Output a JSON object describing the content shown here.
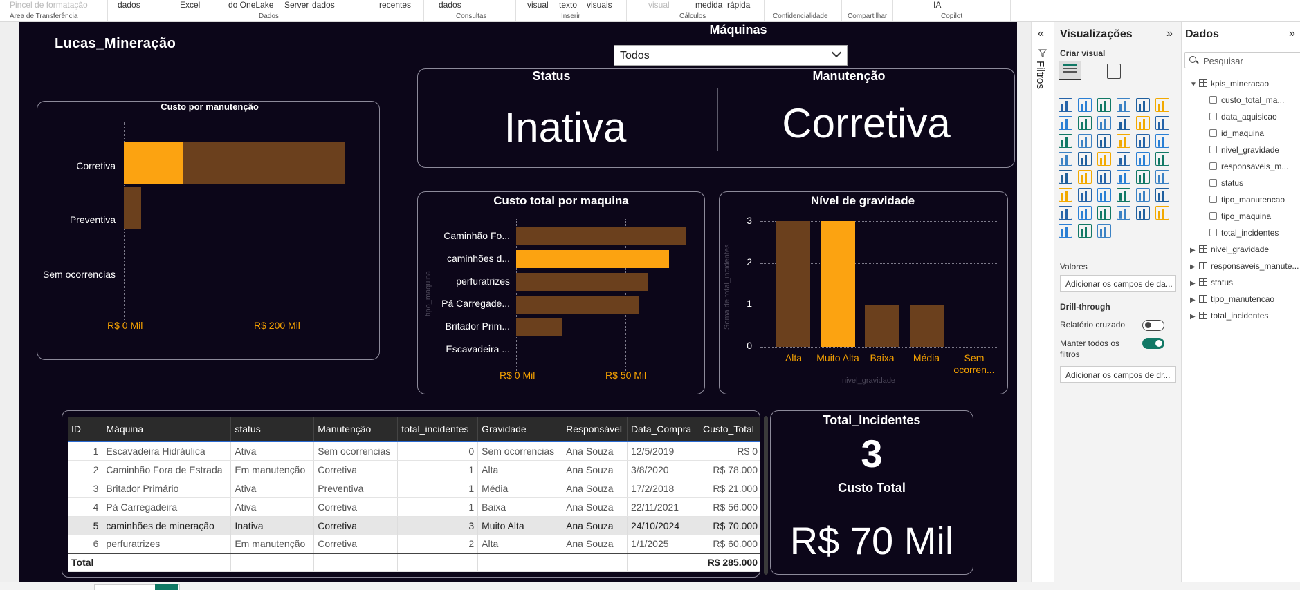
{
  "ribbon": {
    "items": [
      "Pincel de formatação",
      "dados",
      "Excel",
      "do OneLake",
      "Server",
      "dados",
      "recentes",
      "dados",
      "visual",
      "texto",
      "visuais",
      "visual",
      "medida",
      "rápida",
      "IA"
    ],
    "groups": [
      "Área de Transferência",
      "Dados",
      "Consultas",
      "Inserir",
      "Cálculos",
      "Confidencialidade",
      "Compartilhar",
      "Copilot"
    ]
  },
  "report": {
    "logo": "Lucas_Mineração",
    "machines_filter": {
      "label": "Máquinas",
      "value": "Todos"
    },
    "status_card": {
      "title": "Status",
      "value": "Inativa"
    },
    "maintenance_card": {
      "title": "Manutenção",
      "value": "Corretiva"
    },
    "custo_manutencao": {
      "title": "Custo por manutenção",
      "categories": [
        "Corretiva",
        "Preventiva",
        "Sem ocorrencias"
      ],
      "axis_ticks": [
        "R$ 0 Mil",
        "R$ 200 Mil"
      ]
    },
    "custo_maquina": {
      "title": "Custo total por maquina",
      "categories": [
        "Caminhão Fo...",
        "caminhões d...",
        "perfuratrizes",
        "Pá Carregade...",
        "Britador Prim...",
        "Escavadeira ..."
      ],
      "axis_ticks": [
        "R$ 0 Mil",
        "R$ 50 Mil"
      ],
      "y_axis_title": "tipo_maquina"
    },
    "gravidade": {
      "title": "Nível de gravidade",
      "categories": [
        "Alta",
        "Muito Alta",
        "Baixa",
        "Média",
        "Sem ocorren..."
      ],
      "y_ticks": [
        "3",
        "2",
        "1",
        "0"
      ],
      "y_axis_title": "Soma de total_incidentes",
      "x_axis_title": "nivel_gravidade"
    },
    "table": {
      "headers": [
        "ID",
        "Máquina",
        "status",
        "Manutenção",
        "total_incidentes",
        "Gravidade",
        "Responsável",
        "Data_Compra",
        "Custo_Total"
      ],
      "rows": [
        [
          "1",
          "Escavadeira Hidráulica",
          "Ativa",
          "Sem ocorrencias",
          "0",
          "Sem ocorrencias",
          "Ana Souza",
          "12/5/2019",
          "R$ 0"
        ],
        [
          "2",
          "Caminhão Fora de Estrada",
          "Em manutenção",
          "Corretiva",
          "1",
          "Alta",
          "Ana Souza",
          "3/8/2020",
          "R$ 78.000"
        ],
        [
          "3",
          "Britador Primário",
          "Ativa",
          "Preventiva",
          "1",
          "Média",
          "Ana Souza",
          "17/2/2018",
          "R$ 21.000"
        ],
        [
          "4",
          "Pá Carregadeira",
          "Ativa",
          "Corretiva",
          "1",
          "Baixa",
          "Ana Souza",
          "22/11/2021",
          "R$ 56.000"
        ],
        [
          "5",
          "caminhões de mineração",
          "Inativa",
          "Corretiva",
          "3",
          "Muito Alta",
          "Ana Souza",
          "24/10/2024",
          "R$ 70.000"
        ],
        [
          "6",
          "perfuratrizes",
          "Em manutenção",
          "Corretiva",
          "2",
          "Alta",
          "Ana Souza",
          "1/1/2025",
          "R$ 60.000"
        ]
      ],
      "total_label": "Total",
      "total_value": "R$ 285.000"
    },
    "kpi_card": {
      "incidents_title": "Total_Incidentes",
      "incidents_value": "3",
      "cost_title": "Custo Total",
      "cost_value": "R$ 70 Mil"
    }
  },
  "chart_data": [
    {
      "type": "bar",
      "title": "Custo por manutenção",
      "categories": [
        "Corretiva",
        "Preventiva",
        "Sem ocorrencias"
      ],
      "series": [
        {
          "values": [
            264000,
            21000,
            0
          ]
        },
        {
          "values": [
            70000,
            0,
            0
          ]
        }
      ],
      "xlim": [
        0,
        290000
      ]
    },
    {
      "type": "bar",
      "title": "Custo total por maquina",
      "categories": [
        "Caminhão Fo...",
        "caminhões d...",
        "perfuratrizes",
        "Pá Carregade...",
        "Britador Prim...",
        "Escavadeira ..."
      ],
      "values": [
        78000,
        70000,
        60000,
        56000,
        21000,
        0
      ],
      "highlight_index": 1,
      "ylabel": "tipo_maquina"
    },
    {
      "type": "bar",
      "title": "Nível de gravidade",
      "categories": [
        "Alta",
        "Muito Alta",
        "Baixa",
        "Média",
        "Sem ocorren..."
      ],
      "values": [
        3,
        3,
        1,
        1,
        0
      ],
      "highlight_index": 1,
      "ylabel": "Soma de total_incidentes",
      "xlabel": "nivel_gravidade",
      "ylim": [
        0,
        3
      ]
    }
  ],
  "visualizations": {
    "title": "Visualizações",
    "criar_visual": "Criar visual",
    "valores": "Valores",
    "valores_placeholder": "Adicionar os campos de da...",
    "drillthrough": "Drill-through",
    "relatorio_cruzado": "Relatório cruzado",
    "manter_filtros": "Manter todos os filtros",
    "drill_placeholder": "Adicionar os campos de dr..."
  },
  "filters": {
    "label": "Filtros"
  },
  "data_pane": {
    "title": "Dados",
    "search_placeholder": "Pesquisar",
    "table_name": "kpis_mineracao",
    "fields": [
      "custo_total_ma...",
      "data_aquisicao",
      "id_maquina",
      "nivel_gravidade",
      "responsaveis_m...",
      "status",
      "tipo_manutencao",
      "tipo_maquina",
      "total_incidentes"
    ],
    "other_tables": [
      "nivel_gravidade",
      "responsaveis_manute...",
      "status",
      "tipo_manutencao",
      "total_incidentes"
    ]
  },
  "colors": {
    "background": "#0c0619",
    "bar_brown": "#6b401d",
    "bar_orange": "#fca311",
    "accent_green": "#117865"
  }
}
